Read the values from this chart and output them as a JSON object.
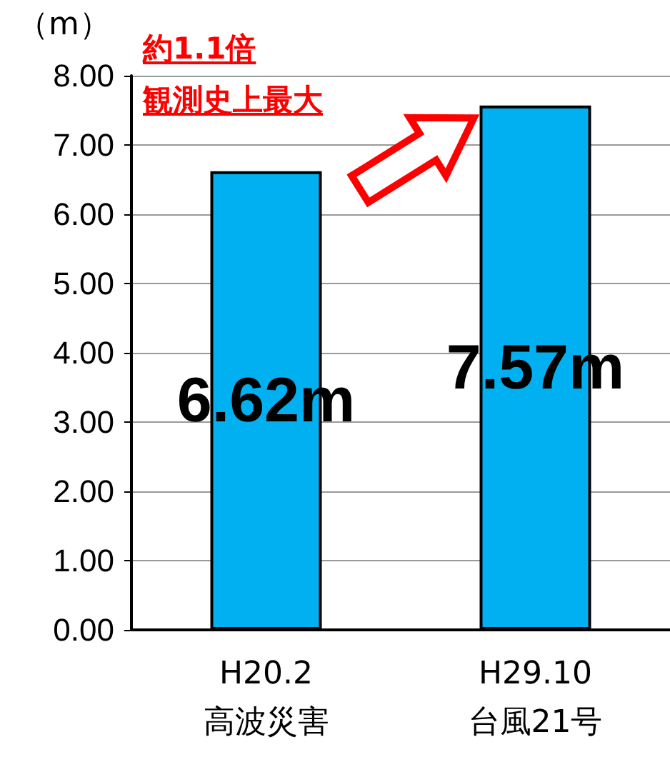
{
  "chart_data": {
    "type": "bar",
    "ylabel": "（m）",
    "categories": [
      "H20.2\n高波災害",
      "H29.10\n台風21号"
    ],
    "values": [
      6.62,
      7.57
    ],
    "color": "#00b0f0",
    "value_labels": [
      "6.62m",
      "7.57m"
    ],
    "ylim": [
      0,
      8
    ],
    "yticks": [
      {
        "value": 0,
        "label": "0.00"
      },
      {
        "value": 1,
        "label": "1.00"
      },
      {
        "value": 2,
        "label": "2.00"
      },
      {
        "value": 3,
        "label": "3.00"
      },
      {
        "value": 4,
        "label": "4.00"
      },
      {
        "value": 5,
        "label": "5.00"
      },
      {
        "value": 6,
        "label": "6.00"
      },
      {
        "value": 7,
        "label": "7.00"
      },
      {
        "value": 8,
        "label": "8.00"
      }
    ],
    "grid": "y",
    "annotations": [
      "約1.1倍",
      "観測史上最大"
    ]
  }
}
